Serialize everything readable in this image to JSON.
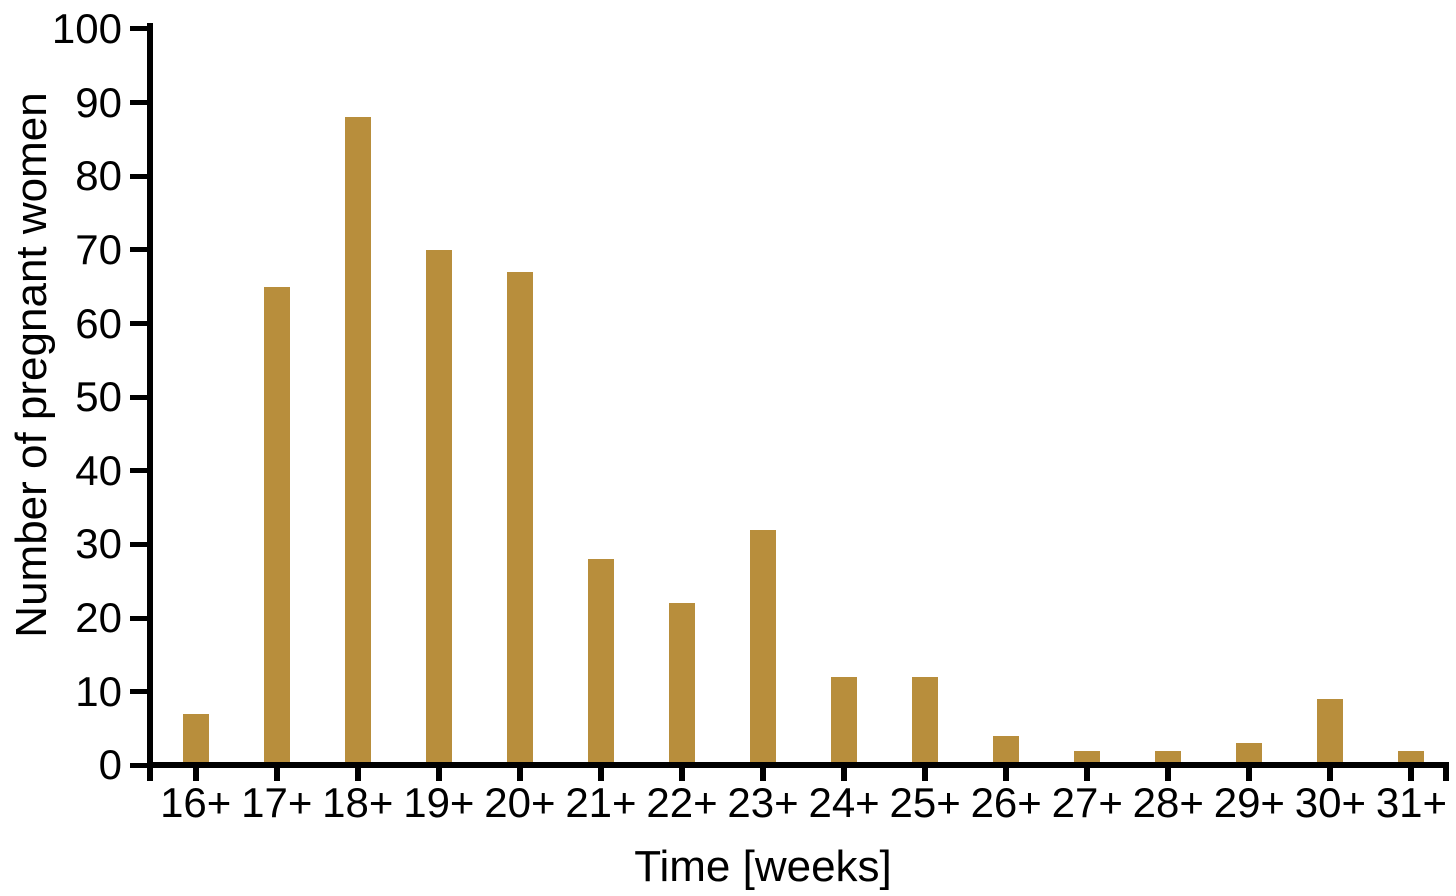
{
  "chart_data": {
    "type": "bar",
    "title": "",
    "xlabel": "Time [weeks]",
    "ylabel": "Number of pregnant women",
    "categories": [
      "16+",
      "17+",
      "18+",
      "19+",
      "20+",
      "21+",
      "22+",
      "23+",
      "24+",
      "25+",
      "26+",
      "27+",
      "28+",
      "29+",
      "30+",
      "31+"
    ],
    "values": [
      7,
      65,
      88,
      70,
      67,
      28,
      22,
      32,
      12,
      12,
      4,
      2,
      2,
      3,
      9,
      2
    ],
    "yticks": [
      0,
      10,
      20,
      30,
      40,
      50,
      60,
      70,
      80,
      90,
      100
    ],
    "ylim": [
      0,
      100
    ],
    "grid": false,
    "legend": "none",
    "colors": {
      "bar": "#B88E3C",
      "axis": "#000000",
      "text": "#000000",
      "background": "#FFFFFF"
    }
  }
}
